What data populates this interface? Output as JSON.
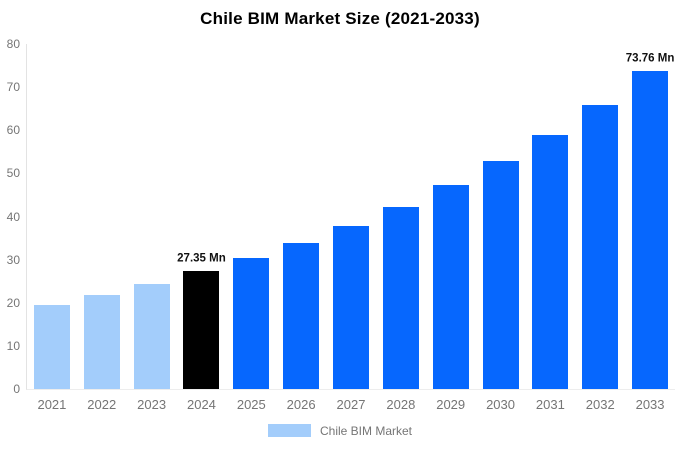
{
  "chart_data": {
    "type": "bar",
    "title": "Chile BIM Market Size (2021-2033)",
    "categories": [
      "2021",
      "2022",
      "2023",
      "2024",
      "2025",
      "2026",
      "2027",
      "2028",
      "2029",
      "2030",
      "2031",
      "2032",
      "2033"
    ],
    "values": [
      19.5,
      21.8,
      24.4,
      27.35,
      30.3,
      33.9,
      37.8,
      42.3,
      47.2,
      52.9,
      59.0,
      65.9,
      73.76
    ],
    "unit": "Mn",
    "point_colors": [
      "#A3CDFB",
      "#A3CDFB",
      "#A3CDFB",
      "#000000",
      "#0667FE",
      "#0667FE",
      "#0667FE",
      "#0667FE",
      "#0667FE",
      "#0667FE",
      "#0667FE",
      "#0667FE",
      "#0667FE"
    ],
    "annotations": [
      {
        "category": "2024",
        "text": "27.35 Mn"
      },
      {
        "category": "2033",
        "text": "73.76 Mn"
      }
    ],
    "xlabel": "",
    "ylabel": "",
    "ylim": [
      0,
      80
    ],
    "yticks": [
      0,
      10,
      20,
      30,
      40,
      50,
      60,
      70,
      80
    ],
    "grid": false,
    "legend": {
      "position": "bottom",
      "entries": [
        {
          "label": "Chile BIM Market",
          "color": "#A3CDFB"
        }
      ]
    },
    "colors": {
      "historical_bar": "#A3CDFB",
      "highlight_bar": "#000000",
      "forecast_bar": "#0667FE",
      "tick_text": "#757575",
      "axis_line": "#e3e3e3",
      "value_label_text": "#111111",
      "title_text": "#000000",
      "background": "#FFFFFF"
    }
  }
}
